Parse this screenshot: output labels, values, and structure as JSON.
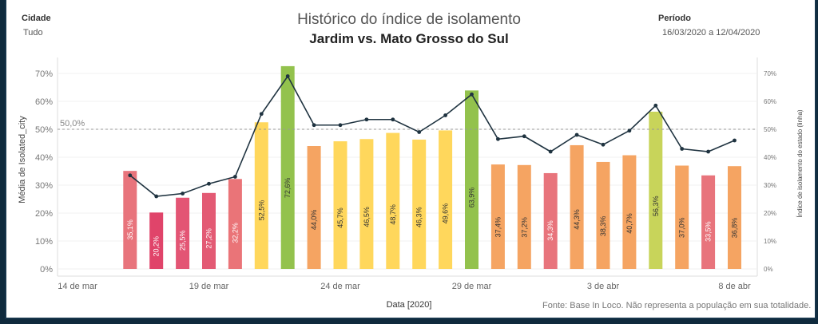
{
  "header": {
    "cidade_label": "Cidade",
    "cidade_value": "Tudo",
    "periodo_label": "Período",
    "periodo_value": "16/03/2020 a 12/04/2020",
    "title": "Histórico do índice de isolamento",
    "subtitle": "Jardim vs. Mato Grosso do Sul"
  },
  "footer": {
    "source": "Fonte: Base In Loco. Não representa a população em sua totalidade."
  },
  "chart_data": {
    "type": "bar",
    "title": "Histórico do índice de isolamento",
    "subtitle": "Jardim vs. Mato Grosso do Sul",
    "xlabel": "Data [2020]",
    "ylabel": "Média de Isolated_city",
    "y2label": "Índice de isolamento do estado (linha)",
    "ylim": [
      0,
      75
    ],
    "yticks": [
      0,
      10,
      20,
      30,
      40,
      50,
      60,
      70
    ],
    "reference_line": {
      "value": 50,
      "label": "50,0%"
    },
    "x_ticks": [
      {
        "label": "14 de mar",
        "day": 0
      },
      {
        "label": "19 de mar",
        "day": 5
      },
      {
        "label": "24 de mar",
        "day": 10
      },
      {
        "label": "29 de mar",
        "day": 15
      },
      {
        "label": "3 de abr",
        "day": 20
      },
      {
        "label": "8 de abr",
        "day": 25
      }
    ],
    "categories": [
      "16/03",
      "17/03",
      "18/03",
      "19/03",
      "20/03",
      "21/03",
      "22/03",
      "23/03",
      "24/03",
      "25/03",
      "26/03",
      "27/03",
      "28/03",
      "29/03",
      "30/03",
      "31/03",
      "01/04",
      "02/04",
      "03/04",
      "04/04",
      "05/04",
      "06/04",
      "07/04",
      "08/04"
    ],
    "series": [
      {
        "type": "bar",
        "values": [
          35.1,
          20.2,
          25.5,
          27.2,
          32.2,
          52.5,
          72.6,
          44.0,
          45.7,
          46.5,
          48.7,
          46.3,
          49.6,
          63.9,
          37.4,
          37.2,
          34.3,
          44.3,
          38.3,
          40.7,
          56.3,
          37.0,
          33.5,
          36.8
        ],
        "labels": [
          "35,1%",
          "20,2%",
          "25,5%",
          "27,2%",
          "32,2%",
          "52,5%",
          "72,6%",
          "44,0%",
          "45,7%",
          "46,5%",
          "48,7%",
          "46,3%",
          "49,6%",
          "63,9%",
          "37,4%",
          "37,2%",
          "34,3%",
          "44,3%",
          "38,3%",
          "40,7%",
          "56,3%",
          "37,0%",
          "33,5%",
          "36,8%"
        ],
        "colors": [
          "#e8747c",
          "#e0446a",
          "#e35574",
          "#e35a74",
          "#ea7478",
          "#ffd75c",
          "#93c24d",
          "#f5a462",
          "#ffd75c",
          "#ffd75c",
          "#ffd75c",
          "#ffd75c",
          "#ffd75c",
          "#93c24d",
          "#f5a462",
          "#f5a462",
          "#e8747c",
          "#f5a462",
          "#f5a462",
          "#f5a462",
          "#c8d45a",
          "#f5a462",
          "#e8747c",
          "#f5a462"
        ]
      },
      {
        "type": "line",
        "values": [
          33.5,
          26,
          27,
          30.5,
          33,
          55.5,
          69,
          51.5,
          51.5,
          53.5,
          53.5,
          49,
          55,
          62.5,
          46.5,
          47.5,
          42,
          48,
          44.5,
          49.5,
          58.5,
          43,
          42,
          46
        ],
        "color": "#1f3340"
      }
    ]
  }
}
